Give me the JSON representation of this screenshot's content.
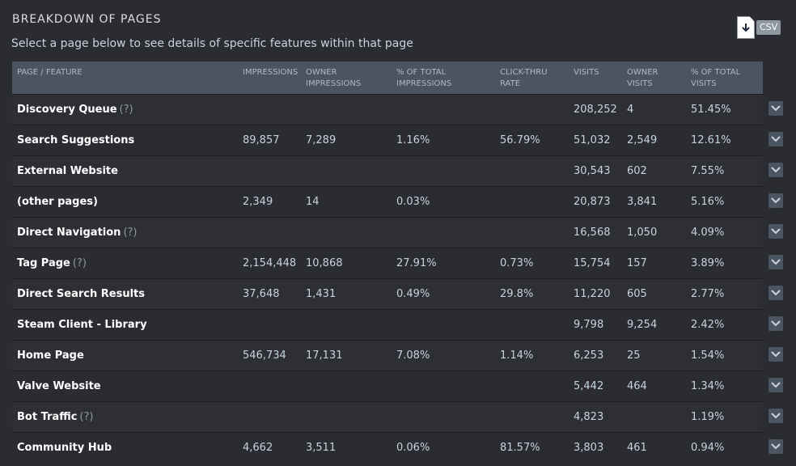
{
  "header": {
    "title": "BREAKDOWN OF PAGES",
    "subtitle": "Select a page below to see details of specific features within that page",
    "csv_label": "CSV"
  },
  "columns": {
    "name": "PAGE / FEATURE",
    "impressions": "IMPRESSIONS",
    "owner_impressions_1": "OWNER",
    "owner_impressions_2": "IMPRESSIONS",
    "pct_impressions_1": "% OF TOTAL",
    "pct_impressions_2": "IMPRESSIONS",
    "ctr_1": "CLICK-THRU",
    "ctr_2": "RATE",
    "visits": "VISITS",
    "owner_visits_1": "OWNER",
    "owner_visits_2": "VISITS",
    "pct_visits_1": "% OF TOTAL",
    "pct_visits_2": "VISITS"
  },
  "help_marker": "(?)",
  "rows": [
    {
      "name": "Discovery Queue",
      "help": true,
      "impressions": "",
      "owner_impressions": "",
      "pct_impressions": "",
      "ctr": "",
      "visits": "208,252",
      "owner_visits": "4",
      "pct_visits": "51.45%"
    },
    {
      "name": "Search Suggestions",
      "help": false,
      "impressions": "89,857",
      "owner_impressions": "7,289",
      "pct_impressions": "1.16%",
      "ctr": "56.79%",
      "visits": "51,032",
      "owner_visits": "2,549",
      "pct_visits": "12.61%"
    },
    {
      "name": "External Website",
      "help": false,
      "impressions": "",
      "owner_impressions": "",
      "pct_impressions": "",
      "ctr": "",
      "visits": "30,543",
      "owner_visits": "602",
      "pct_visits": "7.55%"
    },
    {
      "name": "(other pages)",
      "help": false,
      "impressions": "2,349",
      "owner_impressions": "14",
      "pct_impressions": "0.03%",
      "ctr": "",
      "visits": "20,873",
      "owner_visits": "3,841",
      "pct_visits": "5.16%"
    },
    {
      "name": "Direct Navigation",
      "help": true,
      "impressions": "",
      "owner_impressions": "",
      "pct_impressions": "",
      "ctr": "",
      "visits": "16,568",
      "owner_visits": "1,050",
      "pct_visits": "4.09%"
    },
    {
      "name": "Tag Page",
      "help": true,
      "impressions": "2,154,448",
      "owner_impressions": "10,868",
      "pct_impressions": "27.91%",
      "ctr": "0.73%",
      "visits": "15,754",
      "owner_visits": "157",
      "pct_visits": "3.89%"
    },
    {
      "name": "Direct Search Results",
      "help": false,
      "impressions": "37,648",
      "owner_impressions": "1,431",
      "pct_impressions": "0.49%",
      "ctr": "29.8%",
      "visits": "11,220",
      "owner_visits": "605",
      "pct_visits": "2.77%"
    },
    {
      "name": "Steam Client - Library",
      "help": false,
      "impressions": "",
      "owner_impressions": "",
      "pct_impressions": "",
      "ctr": "",
      "visits": "9,798",
      "owner_visits": "9,254",
      "pct_visits": "2.42%"
    },
    {
      "name": "Home Page",
      "help": false,
      "impressions": "546,734",
      "owner_impressions": "17,131",
      "pct_impressions": "7.08%",
      "ctr": "1.14%",
      "visits": "6,253",
      "owner_visits": "25",
      "pct_visits": "1.54%"
    },
    {
      "name": "Valve Website",
      "help": false,
      "impressions": "",
      "owner_impressions": "",
      "pct_impressions": "",
      "ctr": "",
      "visits": "5,442",
      "owner_visits": "464",
      "pct_visits": "1.34%"
    },
    {
      "name": "Bot Traffic",
      "help": true,
      "impressions": "",
      "owner_impressions": "",
      "pct_impressions": "",
      "ctr": "",
      "visits": "4,823",
      "owner_visits": "",
      "pct_visits": "1.19%"
    },
    {
      "name": "Community Hub",
      "help": false,
      "impressions": "4,662",
      "owner_impressions": "3,511",
      "pct_impressions": "0.06%",
      "ctr": "81.57%",
      "visits": "3,803",
      "owner_visits": "461",
      "pct_visits": "0.94%"
    }
  ]
}
